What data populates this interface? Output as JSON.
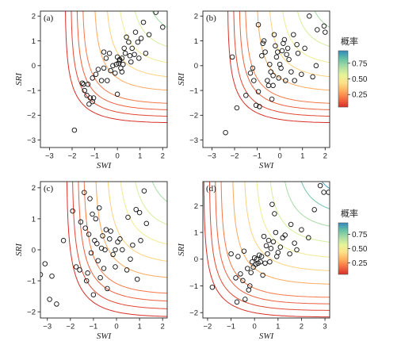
{
  "colorbar": {
    "title": "概率",
    "ticks": [
      {
        "value": 0.75,
        "label": "0.75"
      },
      {
        "value": 0.5,
        "label": "0.50"
      },
      {
        "value": 0.25,
        "label": "0.25"
      }
    ],
    "range": [
      0.05,
      0.95
    ],
    "colors": [
      "#d73027",
      "#f46d43",
      "#fdae61",
      "#fee08b",
      "#e6f598",
      "#abdda4",
      "#66c2a5",
      "#3288bd"
    ]
  },
  "chart_data": [
    {
      "type": "scatter",
      "panel_label": "(a)",
      "xlabel": "SWI",
      "ylabel": "SRI",
      "xlim": [
        -3.4,
        2.2
      ],
      "ylim": [
        -3.3,
        2.2
      ],
      "xticks": [
        -3,
        -2,
        -1,
        0,
        1,
        2
      ],
      "yticks": [
        -3,
        -2,
        -1,
        0,
        1,
        2
      ],
      "contour_params": {
        "c": -0.15,
        "d": 2.4
      },
      "points": [
        [
          -1.9,
          -2.6
        ],
        [
          -1.5,
          -0.75
        ],
        [
          -1.55,
          -0.7
        ],
        [
          -1.45,
          -1.0
        ],
        [
          -1.3,
          -0.75
        ],
        [
          -1.35,
          -1.2
        ],
        [
          -1.2,
          -1.3
        ],
        [
          -1.25,
          -1.55
        ],
        [
          -1.1,
          -1.45
        ],
        [
          -1.05,
          -1.3
        ],
        [
          -1.1,
          -0.5
        ],
        [
          -0.95,
          -0.35
        ],
        [
          -0.85,
          -0.15
        ],
        [
          -0.7,
          -0.6
        ],
        [
          -0.6,
          -0.1
        ],
        [
          -0.5,
          0.3
        ],
        [
          -0.45,
          -0.6
        ],
        [
          -0.35,
          0.5
        ],
        [
          -0.3,
          -0.2
        ],
        [
          -0.2,
          0.0
        ],
        [
          -0.1,
          -0.3
        ],
        [
          0.0,
          0.35
        ],
        [
          0.05,
          0.1
        ],
        [
          0.1,
          0.25
        ],
        [
          0.15,
          -0.1
        ],
        [
          0.2,
          0.3
        ],
        [
          0.2,
          -0.25
        ],
        [
          0.3,
          0.7
        ],
        [
          0.35,
          0.5
        ],
        [
          0.4,
          1.15
        ],
        [
          0.5,
          0.95
        ],
        [
          0.55,
          0.4
        ],
        [
          0.6,
          0.15
        ],
        [
          0.65,
          0.7
        ],
        [
          0.75,
          0.45
        ],
        [
          0.8,
          1.35
        ],
        [
          0.9,
          0.95
        ],
        [
          0.95,
          0.3
        ],
        [
          1.05,
          1.1
        ],
        [
          1.15,
          1.75
        ],
        [
          1.25,
          0.5
        ],
        [
          1.4,
          1.25
        ],
        [
          1.7,
          2.15
        ],
        [
          2.0,
          1.55
        ],
        [
          0.0,
          -1.15
        ],
        [
          -0.05,
          0.05
        ],
        [
          0.1,
          0.2
        ],
        [
          0.25,
          0.05
        ],
        [
          -0.6,
          0.55
        ]
      ]
    },
    {
      "type": "scatter",
      "panel_label": "(b)",
      "xlabel": "SWI",
      "ylabel": "SRI",
      "xlim": [
        -3.4,
        2.2
      ],
      "ylim": [
        -3.3,
        2.2
      ],
      "xticks": [
        -3,
        -2,
        -1,
        0,
        1,
        2
      ],
      "yticks": [
        -3,
        -2,
        -1,
        0,
        1,
        2
      ],
      "contour_params": {
        "c": -0.15,
        "d": 2.4
      },
      "points": [
        [
          -2.4,
          -2.7
        ],
        [
          -2.1,
          0.35
        ],
        [
          -1.9,
          -1.7
        ],
        [
          -1.5,
          -1.2
        ],
        [
          -1.3,
          -0.3
        ],
        [
          -1.2,
          -0.1
        ],
        [
          -1.15,
          -0.6
        ],
        [
          -1.05,
          -1.6
        ],
        [
          -0.95,
          -1.05
        ],
        [
          -0.9,
          -1.65
        ],
        [
          -0.8,
          0.4
        ],
        [
          -0.75,
          0.9
        ],
        [
          -0.65,
          0.55
        ],
        [
          -0.55,
          -0.6
        ],
        [
          -0.5,
          -0.8
        ],
        [
          -0.45,
          0.05
        ],
        [
          -0.4,
          -0.25
        ],
        [
          -0.35,
          -1.35
        ],
        [
          -0.3,
          -0.8
        ],
        [
          -0.25,
          1.25
        ],
        [
          -0.2,
          0.8
        ],
        [
          -0.15,
          0.35
        ],
        [
          -0.1,
          0.55
        ],
        [
          -0.05,
          -0.5
        ],
        [
          0.0,
          0.05
        ],
        [
          0.05,
          -0.1
        ],
        [
          0.1,
          0.6
        ],
        [
          0.15,
          0.9
        ],
        [
          0.2,
          1.05
        ],
        [
          0.25,
          -0.6
        ],
        [
          0.3,
          0.45
        ],
        [
          0.35,
          0.7
        ],
        [
          0.4,
          0.25
        ],
        [
          0.5,
          -0.25
        ],
        [
          0.6,
          1.25
        ],
        [
          0.65,
          -0.6
        ],
        [
          0.75,
          0.85
        ],
        [
          0.8,
          0.5
        ],
        [
          0.95,
          -0.35
        ],
        [
          1.1,
          0.7
        ],
        [
          1.3,
          2.0
        ],
        [
          1.45,
          -0.45
        ],
        [
          1.6,
          0.0
        ],
        [
          1.65,
          1.45
        ],
        [
          1.95,
          1.6
        ],
        [
          2.0,
          1.35
        ],
        [
          -0.95,
          1.65
        ],
        [
          -0.7,
          1.0
        ],
        [
          -0.3,
          -0.4
        ]
      ]
    },
    {
      "type": "scatter",
      "panel_label": "(c)",
      "xlabel": "SWI",
      "ylabel": "SRI",
      "xlim": [
        -3.3,
        2.2
      ],
      "ylim": [
        -2.2,
        2.2
      ],
      "xticks": [
        -3,
        -2,
        -1,
        0,
        1,
        2
      ],
      "yticks": [
        -2,
        -1,
        0,
        1,
        2
      ],
      "contour_params": {
        "c": -0.1,
        "d": 2.3
      },
      "points": [
        [
          -3.3,
          -0.8
        ],
        [
          -3.1,
          -0.45
        ],
        [
          -2.9,
          -1.6
        ],
        [
          -2.8,
          -0.85
        ],
        [
          -2.6,
          -1.75
        ],
        [
          -2.3,
          0.3
        ],
        [
          -1.9,
          1.25
        ],
        [
          -1.75,
          -0.55
        ],
        [
          -1.6,
          -0.65
        ],
        [
          -1.55,
          0.9
        ],
        [
          -1.4,
          1.85
        ],
        [
          -1.35,
          0.7
        ],
        [
          -1.3,
          -1.0
        ],
        [
          -1.25,
          -0.75
        ],
        [
          -1.2,
          0.5
        ],
        [
          -1.15,
          1.65
        ],
        [
          -1.1,
          -0.1
        ],
        [
          -1.05,
          1.15
        ],
        [
          -1.0,
          -1.45
        ],
        [
          -0.95,
          0.3
        ],
        [
          -0.9,
          1.0
        ],
        [
          -0.85,
          0.2
        ],
        [
          -0.8,
          -0.35
        ],
        [
          -0.75,
          1.35
        ],
        [
          -0.7,
          -0.9
        ],
        [
          -0.65,
          0.05
        ],
        [
          -0.6,
          0.45
        ],
        [
          -0.55,
          -0.6
        ],
        [
          -0.5,
          0.0
        ],
        [
          -0.45,
          0.65
        ],
        [
          -0.4,
          -1.25
        ],
        [
          -0.3,
          0.35
        ],
        [
          -0.25,
          0.6
        ],
        [
          -0.15,
          -0.15
        ],
        [
          -0.05,
          0.0
        ],
        [
          0.05,
          0.25
        ],
        [
          0.15,
          0.35
        ],
        [
          0.25,
          0.0
        ],
        [
          0.45,
          -0.65
        ],
        [
          0.5,
          1.05
        ],
        [
          0.6,
          -0.3
        ],
        [
          0.7,
          0.15
        ],
        [
          0.85,
          1.3
        ],
        [
          0.9,
          -0.95
        ],
        [
          1.05,
          0.3
        ],
        [
          1.2,
          1.9
        ],
        [
          1.3,
          0.85
        ],
        [
          1.0,
          1.2
        ],
        [
          -0.05,
          -0.55
        ]
      ]
    },
    {
      "type": "scatter",
      "panel_label": "(d)",
      "xlabel": "SWI",
      "ylabel": "SRI",
      "xlim": [
        -2.2,
        3.2
      ],
      "ylim": [
        -2.2,
        2.9
      ],
      "xticks": [
        -2,
        -1,
        0,
        1,
        2,
        3
      ],
      "yticks": [
        -2,
        -1,
        0,
        1,
        2
      ],
      "contour_params": {
        "c": -0.1,
        "d": 2.3
      },
      "points": [
        [
          -1.8,
          -1.05
        ],
        [
          -1.0,
          0.2
        ],
        [
          -0.8,
          -0.7
        ],
        [
          -0.75,
          -1.6
        ],
        [
          -0.7,
          0.1
        ],
        [
          -0.6,
          -0.55
        ],
        [
          -0.5,
          -0.8
        ],
        [
          -0.45,
          0.3
        ],
        [
          -0.4,
          -1.5
        ],
        [
          -0.3,
          -0.35
        ],
        [
          -0.25,
          -1.15
        ],
        [
          -0.2,
          -1.0
        ],
        [
          -0.15,
          -0.5
        ],
        [
          -0.1,
          -0.1
        ],
        [
          -0.05,
          -0.3
        ],
        [
          0.0,
          0.05
        ],
        [
          0.05,
          -0.2
        ],
        [
          0.1,
          0.0
        ],
        [
          0.15,
          -0.15
        ],
        [
          0.2,
          0.15
        ],
        [
          0.25,
          -0.1
        ],
        [
          0.3,
          0.1
        ],
        [
          0.35,
          -0.6
        ],
        [
          0.4,
          0.85
        ],
        [
          0.45,
          -0.15
        ],
        [
          0.5,
          0.5
        ],
        [
          0.55,
          0.2
        ],
        [
          0.6,
          0.7
        ],
        [
          0.65,
          -0.1
        ],
        [
          0.7,
          0.4
        ],
        [
          0.75,
          2.05
        ],
        [
          0.8,
          0.65
        ],
        [
          0.85,
          1.7
        ],
        [
          0.9,
          1.0
        ],
        [
          0.95,
          0.1
        ],
        [
          1.0,
          0.25
        ],
        [
          1.1,
          0.45
        ],
        [
          1.2,
          0.8
        ],
        [
          1.3,
          0.9
        ],
        [
          1.5,
          0.2
        ],
        [
          1.55,
          1.3
        ],
        [
          1.7,
          0.6
        ],
        [
          1.8,
          0.35
        ],
        [
          2.0,
          1.1
        ],
        [
          2.3,
          0.8
        ],
        [
          2.55,
          1.85
        ],
        [
          2.8,
          2.75
        ],
        [
          2.95,
          2.5
        ],
        [
          3.15,
          2.5
        ]
      ]
    }
  ]
}
